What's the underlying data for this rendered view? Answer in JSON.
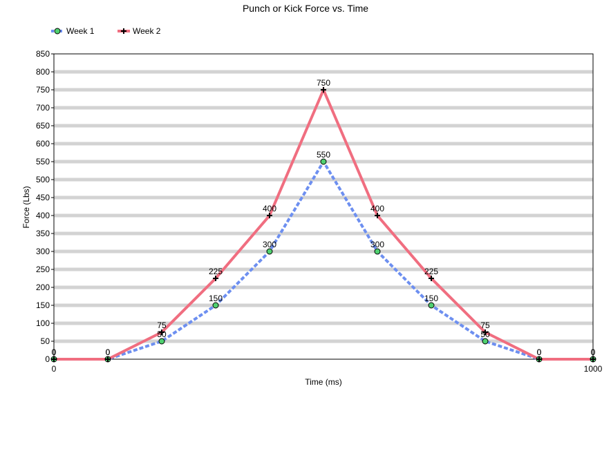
{
  "chart_data": {
    "type": "line",
    "title": "Punch or Kick Force vs. Time",
    "xlabel": "Time (ms)",
    "ylabel": "Force (Lbs)",
    "xlim": [
      0,
      1000
    ],
    "ylim": [
      0,
      850
    ],
    "ytick_step": 50,
    "xticks": [
      0,
      1000
    ],
    "grid": "horizontal",
    "legend_position": "top-left",
    "x": [
      0,
      100,
      200,
      300,
      400,
      500,
      600,
      700,
      800,
      900,
      1000
    ],
    "series": [
      {
        "name": "Week 1",
        "values": [
          0,
          0,
          50,
          150,
          300,
          550,
          300,
          150,
          50,
          0,
          0
        ],
        "color": "#6d8ff0",
        "marker_color": "#50d070",
        "style": "dashed",
        "marker": "circle"
      },
      {
        "name": "Week 2",
        "values": [
          0,
          0,
          75,
          225,
          400,
          750,
          400,
          225,
          75,
          0,
          0
        ],
        "color": "#f06e80",
        "marker_color": "#000000",
        "style": "solid",
        "marker": "plus"
      }
    ]
  }
}
